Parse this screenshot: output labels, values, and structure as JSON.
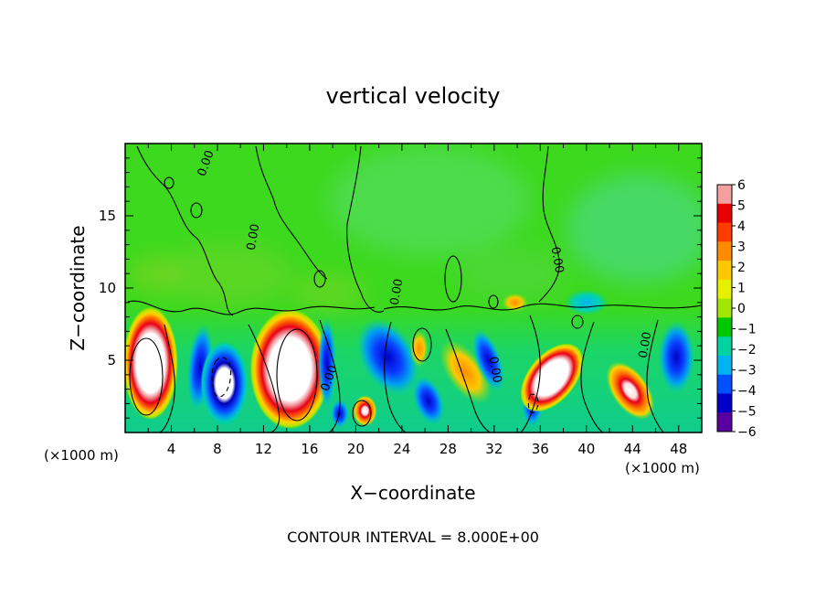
{
  "chart_data": {
    "type": "heatmap",
    "title": "vertical velocity",
    "xlabel": "X−coordinate",
    "ylabel": "Z−coordinate",
    "x_unit_label": "(×1000 m)",
    "x_unit_label_right": "(×1000 m)",
    "xlim": [
      0,
      50
    ],
    "ylim": [
      0,
      20
    ],
    "x_ticks": [
      "4",
      "8",
      "12",
      "16",
      "20",
      "24",
      "28",
      "32",
      "36",
      "40",
      "44",
      "48"
    ],
    "y_ticks": [
      "5",
      "10",
      "15"
    ],
    "contour_interval_label": "CONTOUR INTERVAL = 8.000E+00",
    "contour_label": "0.00",
    "colorbar": {
      "ticks": [
        "6",
        "5",
        "4",
        "3",
        "2",
        "1",
        "0",
        "−1",
        "−2",
        "−3",
        "−4",
        "−5",
        "−6"
      ],
      "colors": [
        "#f4a0a0",
        "#e80000",
        "#ff3c00",
        "#ff8c00",
        "#ffc800",
        "#e6f000",
        "#a0e600",
        "#00c800",
        "#00d2a0",
        "#00b4f0",
        "#0050ff",
        "#0000c8",
        "#5a00a0"
      ],
      "range": [
        -6,
        6
      ]
    },
    "cells": [
      {
        "x": 2.2,
        "z": 4.8,
        "value": 9
      },
      {
        "x": 6.5,
        "z": 4.5,
        "value": -6
      },
      {
        "x": 8.6,
        "z": 3.4,
        "value": -10
      },
      {
        "x": 14.3,
        "z": 4.4,
        "value": 10
      },
      {
        "x": 17.5,
        "z": 4.8,
        "value": -3
      },
      {
        "x": 18.6,
        "z": 1.3,
        "value": -5
      },
      {
        "x": 20.8,
        "z": 1.5,
        "value": 7
      },
      {
        "x": 22.8,
        "z": 5.2,
        "value": -6
      },
      {
        "x": 26.3,
        "z": 2.2,
        "value": -6
      },
      {
        "x": 25.5,
        "z": 5.8,
        "value": 3
      },
      {
        "x": 29.5,
        "z": 4.2,
        "value": 4
      },
      {
        "x": 31.5,
        "z": 5.0,
        "value": -3
      },
      {
        "x": 35.3,
        "z": 2.0,
        "value": -5
      },
      {
        "x": 37.0,
        "z": 3.8,
        "value": 8
      },
      {
        "x": 43.8,
        "z": 2.9,
        "value": 5
      },
      {
        "x": 47.8,
        "z": 5.2,
        "value": -3
      },
      {
        "x": 33.8,
        "z": 9.0,
        "value": 2
      },
      {
        "x": 40.0,
        "z": 9.0,
        "value": -1.5
      }
    ]
  }
}
